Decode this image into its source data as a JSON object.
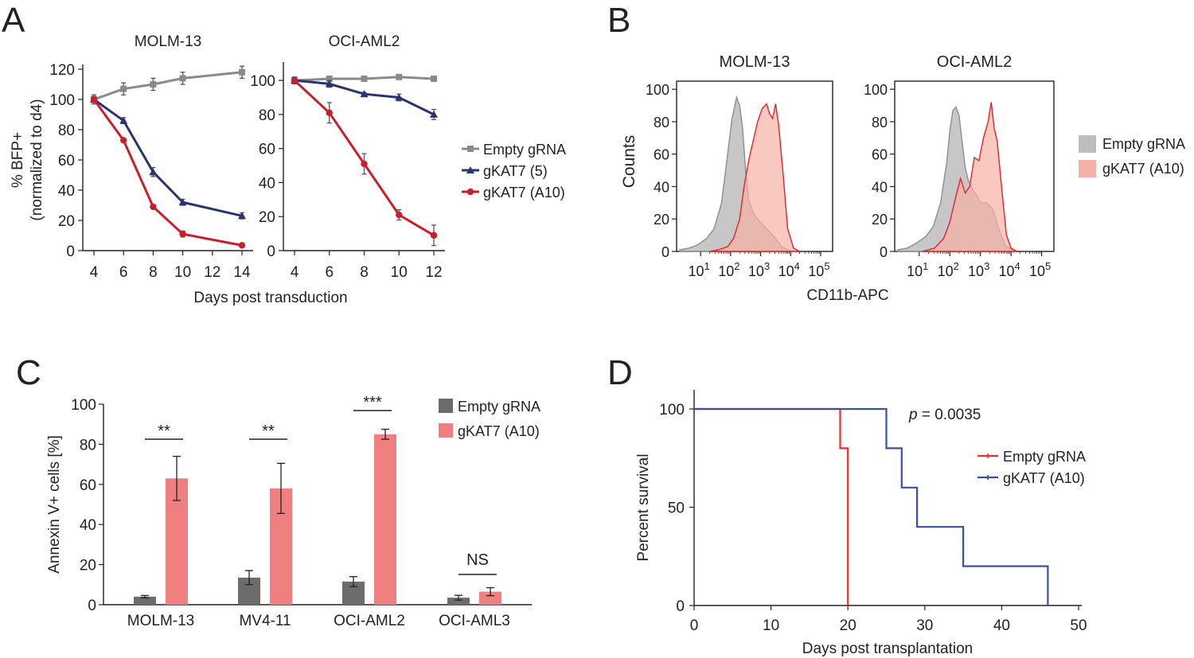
{
  "colors": {
    "empty_line": "#8a8a8a",
    "gkat7_5_line": "#2a3370",
    "gkat7_a10_line": "#c8202a",
    "hist_empty": "#bdbdbd",
    "hist_empty_edge": "#8d8d8d",
    "hist_a10": "#f7b0a4",
    "hist_a10_edge": "#e0242e",
    "bar_empty": "#6e6b6b",
    "bar_a10": "#f07f7f",
    "surv_empty": "#e8302a",
    "surv_a10": "#3a4fa6"
  },
  "chart_data": [
    {
      "panel": "A",
      "type": "line",
      "ylabel_line1": "% BFP+",
      "ylabel_line2": "(normalized to d4)",
      "xlabel": "Days post transduction",
      "legend": [
        "Empty gRNA",
        "gKAT7 (5)",
        "gKAT7 (A10)"
      ],
      "subplots": [
        {
          "title": "MOLM-13",
          "x_ticks": [
            4,
            6,
            8,
            10,
            12,
            14
          ],
          "y_ticks": [
            0,
            20,
            40,
            60,
            80,
            100,
            120
          ],
          "xlim": [
            4,
            14
          ],
          "ylim": [
            0,
            120
          ],
          "series": [
            {
              "name": "Empty gRNA",
              "x": [
                4,
                6,
                8,
                10,
                14
              ],
              "y": [
                100,
                107,
                110,
                114,
                118
              ],
              "err": [
                3,
                4,
                4,
                4,
                4
              ]
            },
            {
              "name": "gKAT7 (5)",
              "x": [
                4,
                6,
                8,
                10,
                14
              ],
              "y": [
                100,
                86,
                52,
                32,
                23
              ],
              "err": [
                2,
                2,
                3,
                2,
                2
              ]
            },
            {
              "name": "gKAT7 (A10)",
              "x": [
                4,
                6,
                8,
                10,
                14
              ],
              "y": [
                100,
                73,
                29,
                11,
                3.5
              ],
              "err": [
                1,
                1,
                1,
                2,
                1
              ]
            }
          ]
        },
        {
          "title": "OCI-AML2",
          "x_ticks": [
            4,
            6,
            8,
            10,
            12
          ],
          "y_ticks": [
            0,
            20,
            40,
            60,
            80,
            100
          ],
          "xlim": [
            4,
            12
          ],
          "ylim": [
            0,
            108
          ],
          "series": [
            {
              "name": "Empty gRNA",
              "x": [
                4,
                6,
                8,
                10,
                12
              ],
              "y": [
                100,
                101,
                101,
                102,
                101
              ],
              "err": [
                1,
                1,
                1,
                1,
                1
              ]
            },
            {
              "name": "gKAT7 (5)",
              "x": [
                4,
                6,
                8,
                10,
                12
              ],
              "y": [
                100,
                98,
                92,
                90,
                80
              ],
              "err": [
                2,
                2,
                1,
                2,
                3
              ]
            },
            {
              "name": "gKAT7 (A10)",
              "x": [
                4,
                6,
                8,
                10,
                12
              ],
              "y": [
                100,
                81,
                51,
                21,
                9
              ],
              "err": [
                2,
                6,
                6,
                3,
                6
              ]
            }
          ]
        }
      ]
    },
    {
      "panel": "B",
      "type": "area",
      "ylabel": "Counts",
      "xlabel": "CD11b-APC",
      "legend": [
        "Empty gRNA",
        "gKAT7 (A10)"
      ],
      "y_ticks": [
        0,
        20,
        40,
        60,
        80,
        100
      ],
      "x_tick_exponents": [
        "1",
        "2",
        "3",
        "4",
        "5"
      ],
      "x_tick_base": "10",
      "xlim_log10": [
        0.2,
        5.4
      ],
      "ylim": [
        0,
        105
      ],
      "subplots": [
        {
          "title": "MOLM-13",
          "series": [
            {
              "name": "Empty gRNA",
              "x": [
                0.3,
                0.6,
                0.9,
                1.2,
                1.45,
                1.7,
                1.9,
                2.05,
                2.2,
                2.3,
                2.4,
                2.5,
                2.6,
                2.75,
                2.9,
                3.1,
                3.3,
                3.5,
                3.7,
                3.9,
                4.1
              ],
              "y": [
                1,
                2,
                4,
                8,
                14,
                30,
                60,
                82,
                95,
                90,
                76,
                50,
                32,
                24,
                20,
                16,
                12,
                8,
                3,
                1,
                0
              ]
            },
            {
              "name": "gKAT7 (A10)",
              "x": [
                1.3,
                1.6,
                1.9,
                2.1,
                2.3,
                2.45,
                2.6,
                2.75,
                2.9,
                3.05,
                3.2,
                3.3,
                3.4,
                3.5,
                3.6,
                3.75,
                3.9,
                4.1,
                4.3
              ],
              "y": [
                0,
                1,
                3,
                8,
                20,
                40,
                56,
                68,
                80,
                88,
                91,
                85,
                82,
                91,
                78,
                48,
                14,
                2,
                0
              ]
            }
          ]
        },
        {
          "title": "OCI-AML2",
          "series": [
            {
              "name": "Empty gRNA",
              "x": [
                0.3,
                0.6,
                0.9,
                1.2,
                1.45,
                1.7,
                1.9,
                2.0,
                2.1,
                2.2,
                2.3,
                2.4,
                2.5,
                2.6,
                2.75,
                2.9,
                3.0,
                3.2,
                3.4,
                3.6,
                3.8,
                4.1
              ],
              "y": [
                1,
                2,
                5,
                9,
                15,
                30,
                55,
                74,
                87,
                89,
                84,
                68,
                52,
                44,
                38,
                34,
                30,
                30,
                26,
                14,
                4,
                0
              ]
            },
            {
              "name": "gKAT7 (A10)",
              "x": [
                1.1,
                1.5,
                1.8,
                2.0,
                2.2,
                2.35,
                2.5,
                2.65,
                2.8,
                2.95,
                3.1,
                3.25,
                3.35,
                3.45,
                3.55,
                3.7,
                3.85,
                4.0,
                4.2
              ],
              "y": [
                0,
                2,
                8,
                18,
                34,
                45,
                36,
                40,
                58,
                56,
                70,
                80,
                92,
                76,
                68,
                38,
                10,
                2,
                0
              ]
            }
          ]
        }
      ]
    },
    {
      "panel": "C",
      "type": "bar",
      "ylabel": "Annexin V+ cells [%]",
      "ylim": [
        0,
        100
      ],
      "y_ticks": [
        0,
        20,
        40,
        60,
        80,
        100
      ],
      "categories": [
        "MOLM-13",
        "MV4-11",
        "OCI-AML2",
        "OCI-AML3"
      ],
      "series": [
        {
          "name": "Empty gRNA",
          "values": [
            4,
            13.5,
            11.5,
            3.5
          ],
          "err": [
            0.6,
            3.5,
            2.5,
            1.2
          ]
        },
        {
          "name": "gKAT7 (A10)",
          "values": [
            63,
            58,
            85,
            6.5
          ],
          "err": [
            11,
            12.5,
            2.5,
            2
          ]
        }
      ],
      "significance": [
        "**",
        "**",
        "***",
        "NS"
      ]
    },
    {
      "panel": "D",
      "type": "line",
      "ylabel": "Percent survival",
      "xlabel": "Days post transplantation",
      "xlim": [
        0,
        50
      ],
      "ylim": [
        0,
        110
      ],
      "x_ticks": [
        0,
        10,
        20,
        30,
        40,
        50
      ],
      "y_ticks": [
        0,
        50,
        100
      ],
      "annotation_italic": "p",
      "annotation_rest": " = 0.0035",
      "series": [
        {
          "name": "Empty gRNA",
          "step_x": [
            0,
            19,
            19,
            20,
            20
          ],
          "step_y": [
            100,
            100,
            80,
            80,
            0
          ]
        },
        {
          "name": "gKAT7 (A10)",
          "step_x": [
            0,
            25,
            25,
            27,
            27,
            29,
            29,
            35,
            35,
            46,
            46
          ],
          "step_y": [
            100,
            100,
            80,
            80,
            60,
            60,
            40,
            40,
            20,
            20,
            0
          ]
        }
      ]
    }
  ],
  "panel_letters": [
    "A",
    "B",
    "C",
    "D"
  ]
}
